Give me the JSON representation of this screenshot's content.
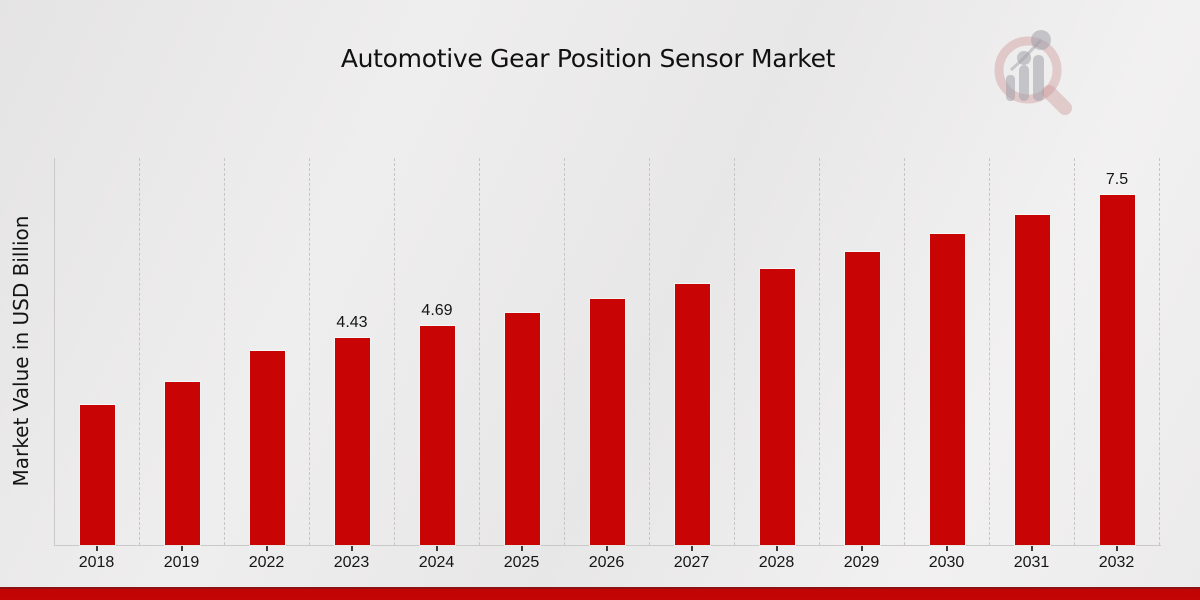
{
  "page": {
    "title": "Automotive Gear Position Sensor Market",
    "watermark_icon": "market-research-future-logo"
  },
  "colors": {
    "bar": "#c90404",
    "banner": "#c20404",
    "banner_edge": "#8e1212",
    "grid": "#c6c6c6",
    "axis": "#c9c9c9",
    "text": "#151515"
  },
  "chart_data": {
    "type": "bar",
    "title": "Automotive Gear Position Sensor Market",
    "xlabel": "",
    "ylabel": "Market Value in USD Billion",
    "categories": [
      "2018",
      "2019",
      "2022",
      "2023",
      "2024",
      "2025",
      "2026",
      "2027",
      "2028",
      "2029",
      "2030",
      "2031",
      "2032"
    ],
    "values": [
      3.0,
      3.5,
      4.16,
      4.43,
      4.69,
      4.98,
      5.27,
      5.6,
      5.93,
      6.28,
      6.66,
      7.08,
      7.5
    ],
    "data_labels": [
      "",
      "",
      "",
      "4.43",
      "4.69",
      "",
      "",
      "",
      "",
      "",
      "",
      "",
      "7.5"
    ],
    "ylim": [
      0,
      8.3
    ],
    "bar_color": "#c90404",
    "grid": "vertical-dashed",
    "legend": false,
    "tick_marks": "below-x-axis"
  }
}
